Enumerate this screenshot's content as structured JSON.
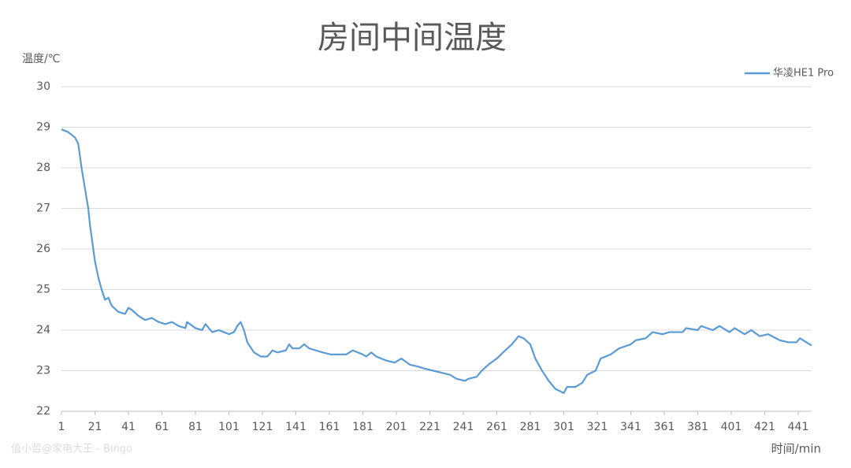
{
  "chart_data": {
    "type": "line",
    "title": "房间中间温度",
    "y_label": "温度/℃",
    "x_label": "时间/min",
    "watermark": "值小哲@家电大王 - Bingo",
    "x": [
      1,
      5,
      9,
      11,
      13,
      15,
      17,
      18,
      20,
      21,
      23,
      25,
      27,
      29,
      31,
      35,
      39,
      41,
      43,
      47,
      51,
      55,
      59,
      63,
      67,
      71,
      75,
      76,
      81,
      85,
      87,
      91,
      95,
      98,
      101,
      104,
      106,
      108,
      110,
      112,
      116,
      120,
      124,
      127,
      130,
      135,
      137,
      139,
      143,
      146,
      149,
      153,
      157,
      162,
      171,
      175,
      181,
      183,
      186,
      189,
      195,
      200,
      204,
      209,
      214,
      218,
      223,
      228,
      233,
      237,
      242,
      244,
      249,
      252,
      256,
      261,
      266,
      270,
      274,
      277,
      281,
      284,
      288,
      292,
      296,
      301,
      303,
      308,
      312,
      315,
      320,
      323,
      329,
      334,
      341,
      344,
      350,
      354,
      360,
      364,
      372,
      374,
      381,
      383,
      390,
      394,
      400,
      403,
      409,
      413,
      418,
      423,
      430,
      435,
      440,
      442,
      449
    ],
    "series": [
      {
        "name": "华凌HE1 Pro",
        "color": "#5b9bd5",
        "values": [
          28.95,
          28.88,
          28.75,
          28.6,
          28.0,
          27.5,
          27.0,
          26.6,
          26.0,
          25.7,
          25.3,
          25.0,
          24.75,
          24.8,
          24.6,
          24.45,
          24.4,
          24.55,
          24.5,
          24.35,
          24.25,
          24.3,
          24.2,
          24.15,
          24.2,
          24.1,
          24.05,
          24.2,
          24.05,
          24.0,
          24.15,
          23.95,
          24.0,
          23.95,
          23.9,
          23.95,
          24.1,
          24.2,
          24.0,
          23.7,
          23.45,
          23.35,
          23.35,
          23.5,
          23.45,
          23.5,
          23.65,
          23.55,
          23.55,
          23.65,
          23.55,
          23.5,
          23.45,
          23.4,
          23.4,
          23.5,
          23.4,
          23.35,
          23.45,
          23.35,
          23.25,
          23.2,
          23.3,
          23.15,
          23.1,
          23.05,
          23.0,
          22.95,
          22.9,
          22.8,
          22.75,
          22.8,
          22.85,
          23.0,
          23.15,
          23.3,
          23.5,
          23.65,
          23.85,
          23.8,
          23.65,
          23.3,
          23.0,
          22.75,
          22.55,
          22.45,
          22.6,
          22.6,
          22.7,
          22.9,
          23.0,
          23.3,
          23.4,
          23.55,
          23.65,
          23.75,
          23.8,
          23.95,
          23.9,
          23.95,
          23.95,
          24.05,
          24.0,
          24.1,
          24.0,
          24.1,
          23.95,
          24.05,
          23.9,
          24.0,
          23.85,
          23.9,
          23.75,
          23.7,
          23.7,
          23.8,
          23.62
        ]
      }
    ],
    "xlim": [
      1,
      449
    ],
    "xticks": [
      1,
      21,
      41,
      61,
      81,
      101,
      121,
      141,
      161,
      181,
      201,
      221,
      241,
      261,
      281,
      301,
      321,
      341,
      361,
      381,
      401,
      421,
      441
    ],
    "ylim": [
      22,
      30
    ],
    "yticks": [
      22,
      23,
      24,
      25,
      26,
      27,
      28,
      29,
      30
    ],
    "grid": true,
    "legend": "top-right"
  }
}
